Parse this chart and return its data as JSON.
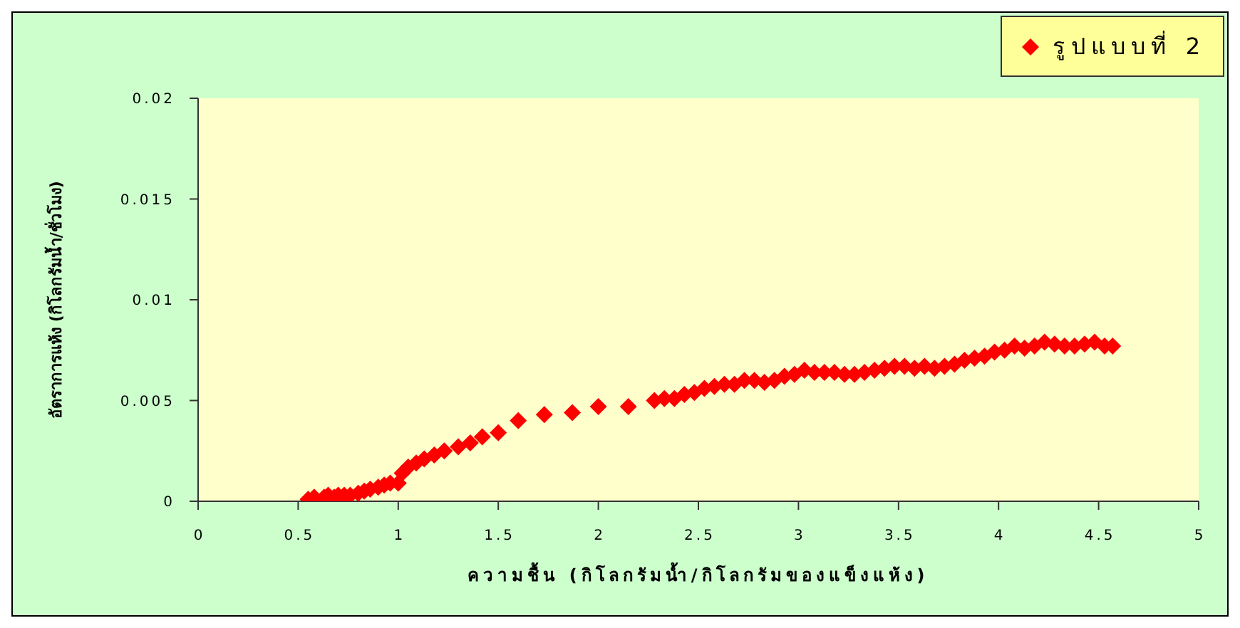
{
  "chart_data": {
    "type": "scatter",
    "xlabel": "ความชื้น (กิโลกรัมน้ำ/กิโลกรัมของแข็งแห้ง)",
    "ylabel": "อัตราการแห้ง (กิโลกรัมน้ำ/ชั่วโมง)",
    "xlim": [
      0,
      5
    ],
    "xticks": [
      0,
      0.5,
      1,
      1.5,
      2,
      2.5,
      3,
      3.5,
      4,
      4.5,
      5
    ],
    "ylim": [
      0,
      0.02
    ],
    "yticks": [
      0,
      0.005,
      0.01,
      0.015,
      0.02
    ],
    "legend": "top right",
    "marker": "diamond",
    "series": [
      {
        "name": "รูปแบบที่ 2",
        "color": "#ff0000",
        "x": [
          0.55,
          0.58,
          0.63,
          0.65,
          0.68,
          0.7,
          0.73,
          0.76,
          0.8,
          0.83,
          0.86,
          0.9,
          0.93,
          0.96,
          1.0,
          1.02,
          1.05,
          1.09,
          1.13,
          1.18,
          1.23,
          1.3,
          1.36,
          1.42,
          1.5,
          1.6,
          1.73,
          1.87,
          2.0,
          2.15,
          2.28,
          2.33,
          2.38,
          2.43,
          2.48,
          2.53,
          2.58,
          2.63,
          2.68,
          2.73,
          2.78,
          2.83,
          2.88,
          2.93,
          2.98,
          3.03,
          3.08,
          3.13,
          3.18,
          3.23,
          3.28,
          3.33,
          3.38,
          3.43,
          3.48,
          3.53,
          3.58,
          3.63,
          3.68,
          3.73,
          3.78,
          3.83,
          3.88,
          3.93,
          3.98,
          4.03,
          4.08,
          4.13,
          4.18,
          4.23,
          4.28,
          4.33,
          4.38,
          4.43,
          4.48,
          4.53,
          4.57
        ],
        "values": [
          0.0001,
          0.0002,
          0.0002,
          0.0003,
          0.0002,
          0.0003,
          0.0003,
          0.0003,
          0.0004,
          0.0005,
          0.0006,
          0.0007,
          0.0008,
          0.0009,
          0.0009,
          0.0014,
          0.0017,
          0.0019,
          0.0021,
          0.0023,
          0.0025,
          0.0027,
          0.0029,
          0.0032,
          0.0034,
          0.004,
          0.0043,
          0.0044,
          0.0047,
          0.0047,
          0.005,
          0.0051,
          0.0051,
          0.0053,
          0.0054,
          0.0056,
          0.0057,
          0.0058,
          0.0058,
          0.006,
          0.006,
          0.0059,
          0.006,
          0.0062,
          0.0063,
          0.0065,
          0.0064,
          0.0064,
          0.0064,
          0.0063,
          0.0063,
          0.0064,
          0.0065,
          0.0066,
          0.0067,
          0.0067,
          0.0066,
          0.0067,
          0.0066,
          0.0067,
          0.0068,
          0.007,
          0.0071,
          0.0072,
          0.0074,
          0.0075,
          0.0077,
          0.0076,
          0.0077,
          0.0079,
          0.0078,
          0.0077,
          0.0077,
          0.0078,
          0.0079,
          0.0077,
          0.0077
        ]
      }
    ]
  }
}
